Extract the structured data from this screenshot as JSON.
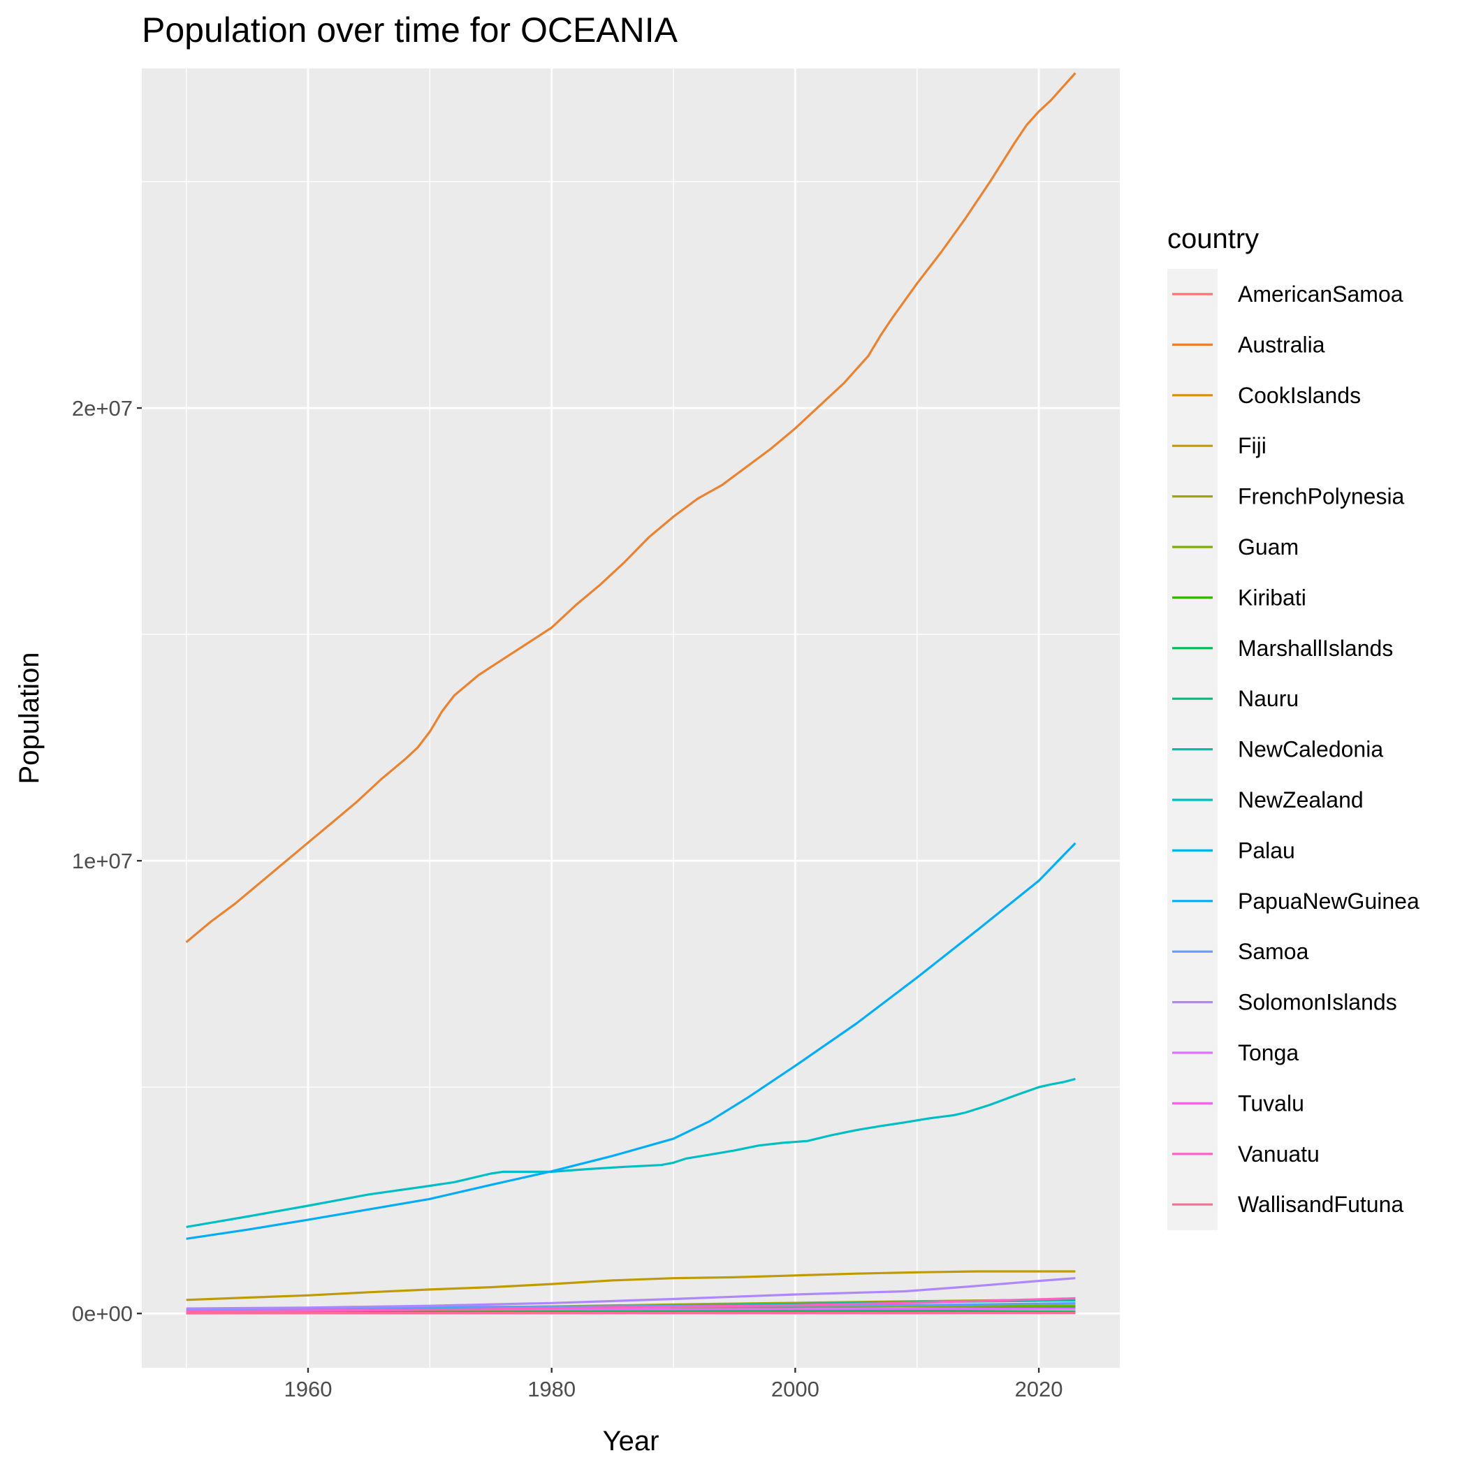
{
  "chart_data": {
    "type": "line",
    "title": "Population over time for OCEANIA",
    "xlabel": "Year",
    "ylabel": "Population",
    "xlim": [
      1946.35,
      2026.65
    ],
    "ylim": [
      -1200000,
      27500000
    ],
    "x_ticks": [
      1960,
      1980,
      2000,
      2020
    ],
    "x_tick_labels": [
      "1960",
      "1980",
      "2000",
      "2020"
    ],
    "y_ticks": [
      0,
      10000000,
      20000000
    ],
    "y_tick_labels": [
      "0e+00",
      "1e+07",
      "2e+07"
    ],
    "y_minor_ticks": [
      5000000,
      15000000,
      25000000
    ],
    "x_minor_ticks": [
      1950,
      1970,
      1990,
      2010
    ],
    "grid": true,
    "panel_background": "#ebebeb",
    "grid_color": "#ffffff",
    "legend_title": "country",
    "legend_position": "right",
    "series": [
      {
        "name": "AmericanSamoa",
        "color": "#F8766D",
        "x": [
          1950,
          1960,
          1970,
          1980,
          1990,
          2000,
          2010,
          2023
        ],
        "y": [
          19000,
          20000,
          27000,
          32000,
          47000,
          58000,
          56000,
          44000
        ]
      },
      {
        "name": "Australia",
        "color": "#EA8331",
        "x": [
          1950,
          1952,
          1954,
          1956,
          1958,
          1960,
          1962,
          1964,
          1966,
          1968,
          1969,
          1970,
          1971,
          1972,
          1974,
          1976,
          1978,
          1980,
          1982,
          1984,
          1986,
          1988,
          1990,
          1991,
          1992,
          1994,
          1996,
          1998,
          2000,
          2002,
          2004,
          2006,
          2007,
          2008,
          2010,
          2012,
          2014,
          2016,
          2018,
          2019,
          2020,
          2021,
          2022,
          2023
        ],
        "y": [
          8200000,
          8650000,
          9050000,
          9500000,
          9950000,
          10400000,
          10850000,
          11300000,
          11800000,
          12250000,
          12500000,
          12850000,
          13300000,
          13650000,
          14100000,
          14450000,
          14800000,
          15150000,
          15650000,
          16100000,
          16600000,
          17150000,
          17600000,
          17800000,
          18000000,
          18300000,
          18700000,
          19100000,
          19550000,
          20050000,
          20550000,
          21150000,
          21600000,
          22000000,
          22750000,
          23450000,
          24200000,
          25000000,
          25850000,
          26250000,
          26550000,
          26800000,
          27100000,
          27400000
        ]
      },
      {
        "name": "CookIslands",
        "color": "#D89000",
        "x": [
          1950,
          1970,
          1990,
          2010,
          2023
        ],
        "y": [
          15000,
          21000,
          18000,
          16000,
          15000
        ]
      },
      {
        "name": "Fiji",
        "color": "#C09B00",
        "x": [
          1950,
          1955,
          1960,
          1965,
          1970,
          1975,
          1980,
          1985,
          1990,
          1995,
          2000,
          2005,
          2010,
          2015,
          2020,
          2023
        ],
        "y": [
          300000,
          350000,
          400000,
          470000,
          530000,
          580000,
          650000,
          730000,
          780000,
          800000,
          840000,
          880000,
          910000,
          930000,
          930000,
          930000
        ]
      },
      {
        "name": "FrenchPolynesia",
        "color": "#A3A500",
        "x": [
          1950,
          1970,
          1990,
          2010,
          2023
        ],
        "y": [
          60000,
          110000,
          200000,
          270000,
          310000
        ]
      },
      {
        "name": "Guam",
        "color": "#7CAE00",
        "x": [
          1950,
          1970,
          1990,
          2010,
          2023
        ],
        "y": [
          60000,
          85000,
          130000,
          160000,
          172000
        ]
      },
      {
        "name": "Kiribati",
        "color": "#39B600",
        "x": [
          1950,
          1970,
          1990,
          2010,
          2023
        ],
        "y": [
          35000,
          50000,
          72000,
          105000,
          133000
        ]
      },
      {
        "name": "MarshallIslands",
        "color": "#00BB4E",
        "x": [
          1950,
          1970,
          1990,
          2010,
          2023
        ],
        "y": [
          14000,
          22000,
          47000,
          54000,
          42000
        ]
      },
      {
        "name": "Nauru",
        "color": "#00BF7D",
        "x": [
          1950,
          1970,
          1990,
          2010,
          2023
        ],
        "y": [
          3000,
          7000,
          9000,
          10000,
          13000
        ]
      },
      {
        "name": "NewCaledonia",
        "color": "#00C1A3",
        "x": [
          1950,
          1970,
          1990,
          2010,
          2023
        ],
        "y": [
          65000,
          110000,
          170000,
          250000,
          290000
        ]
      },
      {
        "name": "NewZealand",
        "color": "#00BFC4",
        "x": [
          1950,
          1955,
          1960,
          1965,
          1970,
          1972,
          1975,
          1976,
          1978,
          1980,
          1983,
          1986,
          1989,
          1990,
          1991,
          1993,
          1995,
          1997,
          1999,
          2001,
          2003,
          2005,
          2007,
          2009,
          2011,
          2013,
          2014,
          2016,
          2018,
          2020,
          2021,
          2022,
          2023
        ],
        "y": [
          1910000,
          2140000,
          2380000,
          2630000,
          2820000,
          2900000,
          3090000,
          3130000,
          3130000,
          3130000,
          3190000,
          3240000,
          3280000,
          3330000,
          3420000,
          3510000,
          3600000,
          3710000,
          3770000,
          3810000,
          3940000,
          4050000,
          4140000,
          4220000,
          4310000,
          4380000,
          4440000,
          4610000,
          4810000,
          5000000,
          5060000,
          5110000,
          5180000
        ]
      },
      {
        "name": "Palau",
        "color": "#00B9E3",
        "x": [
          1950,
          1970,
          1990,
          2010,
          2023
        ],
        "y": [
          7000,
          11000,
          15000,
          18000,
          18000
        ]
      },
      {
        "name": "PapuaNewGuinea",
        "color": "#00ADFA",
        "x": [
          1950,
          1955,
          1960,
          1965,
          1970,
          1975,
          1980,
          1985,
          1990,
          1993,
          1996,
          2000,
          2005,
          2010,
          2015,
          2020,
          2023
        ],
        "y": [
          1650000,
          1850000,
          2070000,
          2300000,
          2530000,
          2840000,
          3140000,
          3480000,
          3860000,
          4250000,
          4750000,
          5470000,
          6400000,
          7420000,
          8480000,
          9560000,
          10390000
        ]
      },
      {
        "name": "Samoa",
        "color": "#619CFF",
        "x": [
          1950,
          1970,
          1990,
          2010,
          2023
        ],
        "y": [
          82000,
          143000,
          162000,
          184000,
          225000
        ]
      },
      {
        "name": "SolomonIslands",
        "color": "#AE87FF",
        "x": [
          1950,
          1960,
          1970,
          1980,
          1990,
          2000,
          2009,
          2015,
          2020,
          2023
        ],
        "y": [
          110000,
          130000,
          170000,
          230000,
          320000,
          420000,
          490000,
          610000,
          720000,
          780000
        ]
      },
      {
        "name": "Tonga",
        "color": "#DB72FB",
        "x": [
          1950,
          1970,
          1990,
          2010,
          2023
        ],
        "y": [
          50000,
          84000,
          95000,
          103000,
          107000
        ]
      },
      {
        "name": "Tuvalu",
        "color": "#F564E3",
        "x": [
          1950,
          1970,
          1990,
          2010,
          2023
        ],
        "y": [
          5000,
          6000,
          9000,
          10000,
          11000
        ]
      },
      {
        "name": "Vanuatu",
        "color": "#FF61C3",
        "x": [
          1950,
          1960,
          1970,
          1980,
          1990,
          2000,
          2010,
          2023
        ],
        "y": [
          50000,
          63000,
          82000,
          114000,
          147000,
          184000,
          236000,
          335000
        ]
      },
      {
        "name": "WallisandFutuna",
        "color": "#FF6C91",
        "x": [
          1950,
          1970,
          1990,
          2010,
          2023
        ],
        "y": [
          7000,
          9000,
          14000,
          13000,
          11000
        ]
      }
    ]
  }
}
